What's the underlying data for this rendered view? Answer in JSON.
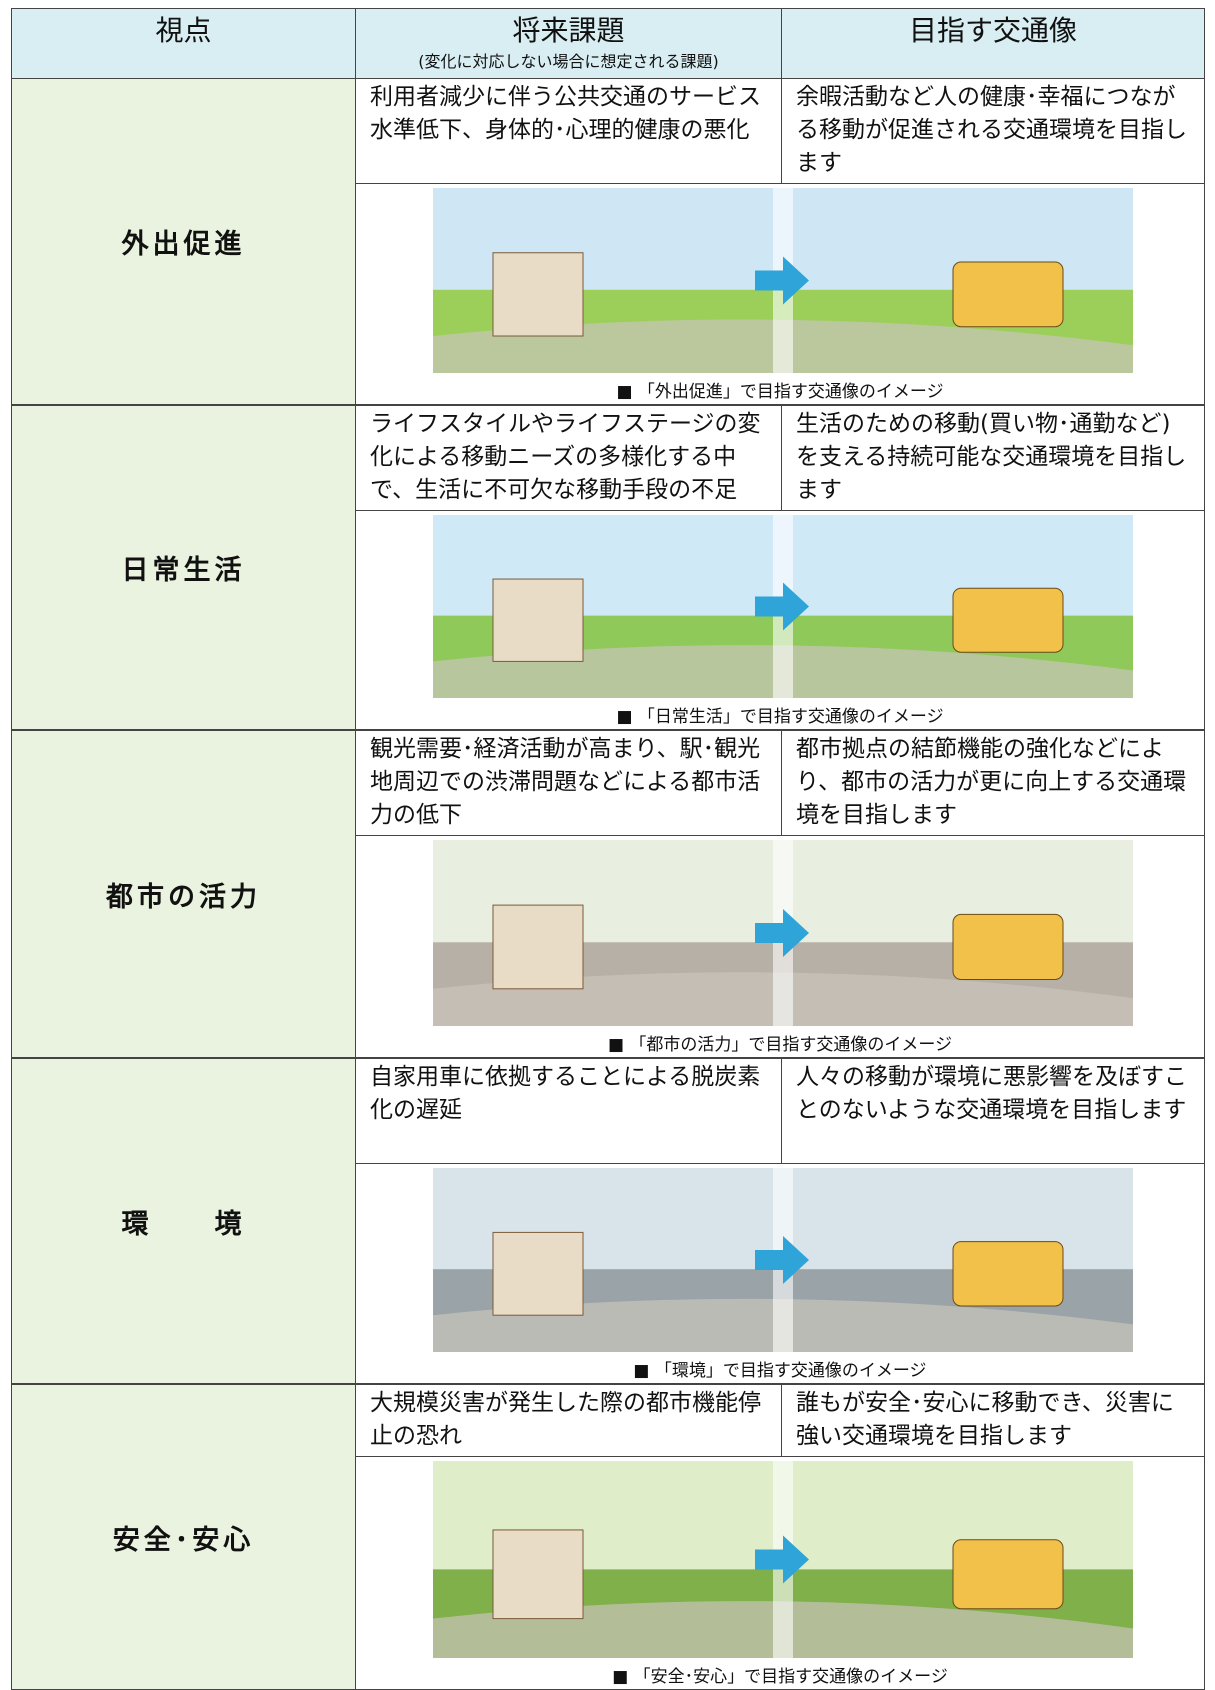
{
  "header": {
    "viewpoint": "視点",
    "issue": "将来課題",
    "issue_note": "(変化に対応しない場合に想定される課題)",
    "goal": "目指す交通像"
  },
  "rows": [
    {
      "viewpoint": "外出促進",
      "issue": "利用者減少に伴う公共交通のサービス水準低下、身体的･心理的健康の悪化",
      "goal": "余暇活動など人の健康･幸福につながる移動が促進される交通環境を目指します",
      "caption": "■ 「外出促進」で目指す交通像のイメージ"
    },
    {
      "viewpoint": "日常生活",
      "issue": "ライフスタイルやライフステージの変化による移動ニーズの多様化する中で、生活に不可欠な移動手段の不足",
      "goal": "生活のための移動(買い物･通勤など)を支える持続可能な交通環境を目指します",
      "caption": "■ 「日常生活」で目指す交通像のイメージ"
    },
    {
      "viewpoint": "都市の活力",
      "issue": "観光需要･経済活動が高まり、駅･観光地周辺での渋滞問題などによる都市活力の低下",
      "goal": "都市拠点の結節機能の強化などにより、都市の活力が更に向上する交通環境を目指します",
      "caption": "■ 「都市の活力」で目指す交通像のイメージ"
    },
    {
      "viewpoint": "環　　境",
      "issue": "自家用車に依拠することによる脱炭素化の遅延",
      "goal": "人々の移動が環境に悪影響を及ぼすことのないような交通環境を目指します",
      "caption": "■ 「環境」で目指す交通像のイメージ"
    },
    {
      "viewpoint": "安全･安心",
      "issue": "大規模災害が発生した際の都市機能停止の恐れ",
      "goal": "誰もが安全･安心に移動でき、災害に強い交通環境を目指します",
      "caption": "■ 「安全･安心」で目指す交通像のイメージ"
    }
  ]
}
